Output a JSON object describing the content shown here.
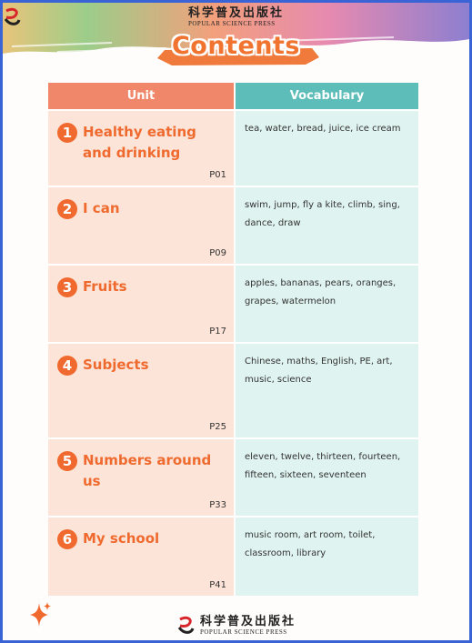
{
  "publisher": {
    "name_cn": "科学普及出版社",
    "name_en": "POPULAR SCIENCE PRESS"
  },
  "title": "Contents",
  "table": {
    "headers": {
      "unit": "Unit",
      "vocabulary": "Vocabulary"
    },
    "rows": [
      {
        "number": "1",
        "title": "Healthy eating and drinking",
        "page": "P01",
        "vocabulary": "tea, water, bread, juice, ice cream"
      },
      {
        "number": "2",
        "title": "I can",
        "page": "P09",
        "vocabulary": "swim, jump, fly a kite, climb, sing, dance, draw"
      },
      {
        "number": "3",
        "title": "Fruits",
        "page": "P17",
        "vocabulary": "apples, bananas, pears, oranges, grapes, watermelon"
      },
      {
        "number": "4",
        "title": "Subjects",
        "page": "P25",
        "vocabulary": "Chinese, maths, English, PE, art, music, science"
      },
      {
        "number": "5",
        "title": "Numbers around us",
        "page": "P33",
        "vocabulary": "eleven, twelve, thirteen, fourteen, fifteen, sixteen, seventeen"
      },
      {
        "number": "6",
        "title": "My school",
        "page": "P41",
        "vocabulary": "music room, art room, toilet, classroom, library"
      }
    ]
  },
  "colors": {
    "accent": "#ef6a2e",
    "unit_header": "#f0876a",
    "vocab_header": "#5dbdb9",
    "unit_cell": "#fde4d8",
    "vocab_cell": "#dff3f0",
    "frame": "#3a63d6"
  },
  "icons": [
    "publisher-logo-icon",
    "sparkle-icon"
  ]
}
